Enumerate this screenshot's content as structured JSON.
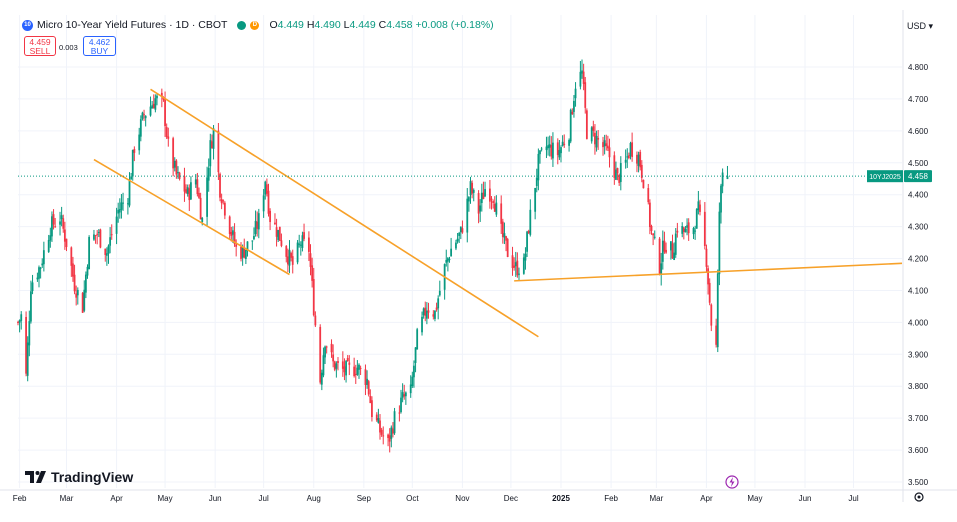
{
  "header": {
    "badge": "10",
    "title": "Micro 10-Year Yield Futures · 1D · CBOT",
    "open_label": "O",
    "open": "4.449",
    "high_label": "H",
    "high": "4.490",
    "low_label": "L",
    "low": "4.449",
    "close_label": "C",
    "close": "4.458",
    "change": "+0.008 (+0.18%)",
    "delayed_letter": "D",
    "market_status_color": "#089981",
    "delayed_color": "#ff9800"
  },
  "trade": {
    "sell_price": "4.459",
    "sell_label": "SELL",
    "spread": "0.003",
    "buy_price": "4.462",
    "buy_label": "BUY"
  },
  "currency": "USD ▾",
  "logo": {
    "text": "TradingView"
  },
  "colors": {
    "up": "#089981",
    "down": "#f23645",
    "trendline": "#f7a129",
    "price_tag": "#089981"
  },
  "chart_data": {
    "type": "candlestick",
    "title": "Micro 10-Year Yield Futures · 1D · CBOT",
    "ylim": [
      3.47,
      4.95
    ],
    "y_ticks": [
      "4.800",
      "4.700",
      "4.600",
      "4.500",
      "4.400",
      "4.300",
      "4.200",
      "4.100",
      "4.000",
      "3.900",
      "3.800",
      "3.700",
      "3.600",
      "3.500"
    ],
    "x_ticks": [
      "Feb",
      "Mar",
      "Apr",
      "May",
      "Jun",
      "Jul",
      "Aug",
      "Sep",
      "Oct",
      "Nov",
      "Dec",
      "2025",
      "Feb",
      "Mar",
      "Apr",
      "May",
      "Jun",
      "Jul"
    ],
    "last_price": {
      "symbol": "10YJ2025",
      "value": "4.458"
    },
    "trendlines": [
      {
        "name": "upper-channel-line",
        "from": [
          "2024-04-22",
          4.73
        ],
        "to": [
          "2024-12-18",
          3.955
        ]
      },
      {
        "name": "lower-channel-line",
        "from": [
          "2024-03-18",
          4.51
        ],
        "to": [
          "2024-07-17",
          4.15
        ]
      },
      {
        "name": "support-line",
        "from": [
          "2024-12-03",
          4.13
        ],
        "to": [
          "2025-07-31",
          4.185
        ]
      }
    ],
    "anchors": [
      [
        "2024-01-31",
        4.0
      ],
      [
        "2024-02-02",
        4.02
      ],
      [
        "2024-02-05",
        3.83
      ],
      [
        "2024-02-08",
        4.12
      ],
      [
        "2024-02-14",
        4.18
      ],
      [
        "2024-02-20",
        4.3
      ],
      [
        "2024-02-26",
        4.33
      ],
      [
        "2024-03-01",
        4.25
      ],
      [
        "2024-03-06",
        4.12
      ],
      [
        "2024-03-11",
        4.05
      ],
      [
        "2024-03-15",
        4.25
      ],
      [
        "2024-03-20",
        4.28
      ],
      [
        "2024-03-26",
        4.22
      ],
      [
        "2024-04-02",
        4.35
      ],
      [
        "2024-04-08",
        4.4
      ],
      [
        "2024-04-12",
        4.55
      ],
      [
        "2024-04-18",
        4.65
      ],
      [
        "2024-04-25",
        4.7
      ],
      [
        "2024-04-30",
        4.68
      ],
      [
        "2024-05-03",
        4.55
      ],
      [
        "2024-05-08",
        4.46
      ],
      [
        "2024-05-15",
        4.4
      ],
      [
        "2024-05-20",
        4.45
      ],
      [
        "2024-05-24",
        4.32
      ],
      [
        "2024-05-29",
        4.55
      ],
      [
        "2024-05-31",
        4.6
      ],
      [
        "2024-06-04",
        4.42
      ],
      [
        "2024-06-10",
        4.3
      ],
      [
        "2024-06-14",
        4.23
      ],
      [
        "2024-06-18",
        4.22
      ],
      [
        "2024-06-24",
        4.26
      ],
      [
        "2024-06-28",
        4.32
      ],
      [
        "2024-07-02",
        4.45
      ],
      [
        "2024-07-05",
        4.33
      ],
      [
        "2024-07-10",
        4.28
      ],
      [
        "2024-07-15",
        4.22
      ],
      [
        "2024-07-19",
        4.18
      ],
      [
        "2024-07-24",
        4.25
      ],
      [
        "2024-07-29",
        4.23
      ],
      [
        "2024-08-01",
        4.05
      ],
      [
        "2024-08-05",
        3.82
      ],
      [
        "2024-08-08",
        3.95
      ],
      [
        "2024-08-13",
        3.87
      ],
      [
        "2024-08-19",
        3.85
      ],
      [
        "2024-08-23",
        3.85
      ],
      [
        "2024-08-28",
        3.86
      ],
      [
        "2024-09-03",
        3.82
      ],
      [
        "2024-09-06",
        3.72
      ],
      [
        "2024-09-11",
        3.66
      ],
      [
        "2024-09-16",
        3.62
      ],
      [
        "2024-09-20",
        3.7
      ],
      [
        "2024-09-25",
        3.76
      ],
      [
        "2024-09-30",
        3.78
      ],
      [
        "2024-10-04",
        3.95
      ],
      [
        "2024-10-10",
        4.05
      ],
      [
        "2024-10-15",
        4.03
      ],
      [
        "2024-10-21",
        4.17
      ],
      [
        "2024-10-25",
        4.23
      ],
      [
        "2024-10-31",
        4.28
      ],
      [
        "2024-11-06",
        4.42
      ],
      [
        "2024-11-11",
        4.35
      ],
      [
        "2024-11-15",
        4.42
      ],
      [
        "2024-11-20",
        4.4
      ],
      [
        "2024-11-25",
        4.28
      ],
      [
        "2024-11-29",
        4.22
      ],
      [
        "2024-12-04",
        4.17
      ],
      [
        "2024-12-09",
        4.18
      ],
      [
        "2024-12-12",
        4.3
      ],
      [
        "2024-12-18",
        4.5
      ],
      [
        "2024-12-23",
        4.55
      ],
      [
        "2024-12-30",
        4.53
      ],
      [
        "2025-01-06",
        4.6
      ],
      [
        "2025-01-10",
        4.75
      ],
      [
        "2025-01-14",
        4.78
      ],
      [
        "2025-01-17",
        4.6
      ],
      [
        "2025-01-22",
        4.58
      ],
      [
        "2025-01-27",
        4.55
      ],
      [
        "2025-01-31",
        4.52
      ],
      [
        "2025-02-05",
        4.45
      ],
      [
        "2025-02-10",
        4.5
      ],
      [
        "2025-02-13",
        4.55
      ],
      [
        "2025-02-18",
        4.52
      ],
      [
        "2025-02-21",
        4.45
      ],
      [
        "2025-02-26",
        4.28
      ],
      [
        "2025-03-03",
        4.18
      ],
      [
        "2025-03-06",
        4.25
      ],
      [
        "2025-03-11",
        4.22
      ],
      [
        "2025-03-14",
        4.3
      ],
      [
        "2025-03-19",
        4.28
      ],
      [
        "2025-03-24",
        4.3
      ],
      [
        "2025-03-27",
        4.35
      ],
      [
        "2025-04-01",
        4.2
      ],
      [
        "2025-04-04",
        4.0
      ],
      [
        "2025-04-07",
        3.92
      ],
      [
        "2025-04-09",
        4.35
      ],
      [
        "2025-04-11",
        4.47
      ],
      [
        "2025-04-14",
        4.458
      ]
    ]
  }
}
